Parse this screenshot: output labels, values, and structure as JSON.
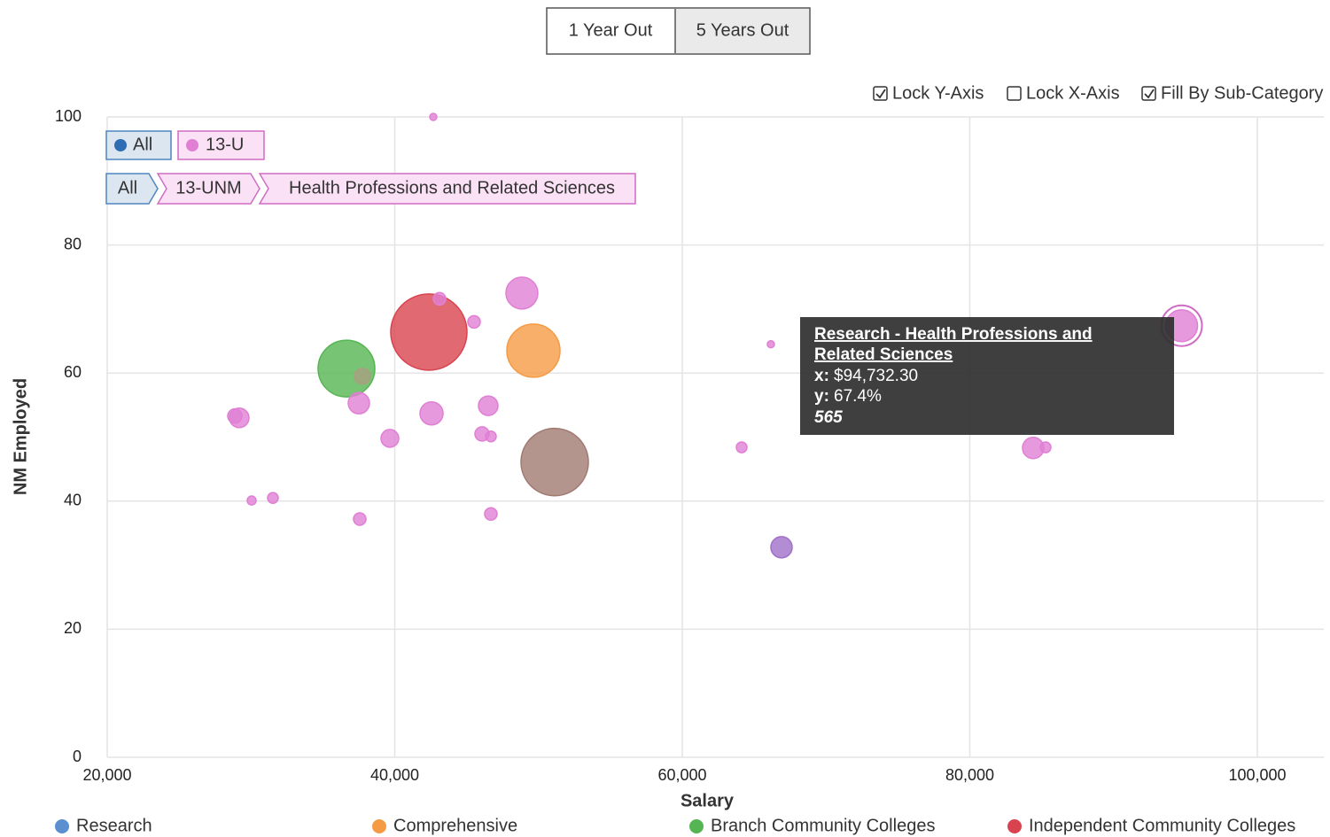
{
  "toggle": {
    "options": [
      "1 Year Out",
      "5 Years Out"
    ]
  },
  "checkboxes": [
    {
      "label": "Lock Y-Axis",
      "checked": true
    },
    {
      "label": "Lock X-Axis",
      "checked": false
    },
    {
      "label": "Fill By Sub-Category",
      "checked": true
    }
  ],
  "filters": [
    "All",
    "13-U"
  ],
  "breadcrumbs": [
    "All",
    "13-UNM",
    "Health Professions and Related Sciences"
  ],
  "tooltip": {
    "title_lines": [
      "Research - Health Professions and",
      "Related Sciences"
    ],
    "x_label": "x:",
    "x_value": "$94,732.30",
    "y_label": "y:",
    "y_value": "67.4%",
    "size_value": "565"
  },
  "chart_data": {
    "type": "bubble",
    "x_label": "Salary",
    "y_label": "NM Employed",
    "xlim": [
      20000,
      104000
    ],
    "ylim": [
      0,
      100
    ],
    "xticks": [
      {
        "value": 20000,
        "label": "20,000"
      },
      {
        "value": 40000,
        "label": "40,000"
      },
      {
        "value": 60000,
        "label": "60,000"
      },
      {
        "value": 80000,
        "label": "80,000"
      },
      {
        "value": 100000,
        "label": "100,000"
      }
    ],
    "yticks": [
      0,
      20,
      40,
      60,
      80,
      100
    ],
    "grid": true,
    "points": [
      {
        "x": 42681,
        "y": 100,
        "size": 28,
        "color": "#e07fd4"
      },
      {
        "x": 42373,
        "y": 66.4,
        "size": 3227,
        "color": "#d9434f"
      },
      {
        "x": 43113,
        "y": 71.6,
        "size": 86,
        "color": "#e07fd4"
      },
      {
        "x": 45516,
        "y": 68.0,
        "size": 86,
        "color": "#e07fd4"
      },
      {
        "x": 48844,
        "y": 72.5,
        "size": 565,
        "color": "#e07fd4"
      },
      {
        "x": 49646,
        "y": 63.5,
        "size": 1570,
        "color": "#f59b45"
      },
      {
        "x": 36641,
        "y": 60.7,
        "size": 1787,
        "color": "#55b552"
      },
      {
        "x": 37750,
        "y": 59.5,
        "size": 141,
        "color": "#a7a080"
      },
      {
        "x": 37504,
        "y": 55.3,
        "size": 251,
        "color": "#e07fd4"
      },
      {
        "x": 28875,
        "y": 53.3,
        "size": 112,
        "color": "#e07fd4"
      },
      {
        "x": 29183,
        "y": 53.0,
        "size": 211,
        "color": "#e07fd4"
      },
      {
        "x": 42558,
        "y": 53.7,
        "size": 295,
        "color": "#e07fd4"
      },
      {
        "x": 46502,
        "y": 54.9,
        "size": 211,
        "color": "#e07fd4"
      },
      {
        "x": 39661,
        "y": 49.8,
        "size": 175,
        "color": "#e07fd4"
      },
      {
        "x": 46071,
        "y": 50.5,
        "size": 112,
        "color": "#e07fd4"
      },
      {
        "x": 46687,
        "y": 50.1,
        "size": 63,
        "color": "#e07fd4"
      },
      {
        "x": 51125,
        "y": 46.1,
        "size": 2520,
        "color": "#a07a72"
      },
      {
        "x": 30046,
        "y": 40.1,
        "size": 44,
        "color": "#e07fd4"
      },
      {
        "x": 31525,
        "y": 40.5,
        "size": 63,
        "color": "#e07fd4"
      },
      {
        "x": 37565,
        "y": 37.2,
        "size": 86,
        "color": "#e07fd4"
      },
      {
        "x": 46687,
        "y": 38.0,
        "size": 86,
        "color": "#e07fd4"
      },
      {
        "x": 66163,
        "y": 64.5,
        "size": 28,
        "color": "#e07fd4"
      },
      {
        "x": 64129,
        "y": 48.4,
        "size": 63,
        "color": "#e07fd4"
      },
      {
        "x": 66903,
        "y": 32.8,
        "size": 251,
        "color": "#a070c8"
      },
      {
        "x": 84407,
        "y": 48.3,
        "size": 251,
        "color": "#e07fd4"
      },
      {
        "x": 85270,
        "y": 48.4,
        "size": 63,
        "color": "#e07fd4"
      },
      {
        "x": 94732.3,
        "y": 67.4,
        "size": 565,
        "color": "#e07fd4"
      }
    ],
    "legend": [
      {
        "name": "Research",
        "color": "#5b8fd0"
      },
      {
        "name": "Comprehensive",
        "color": "#f59b45"
      },
      {
        "name": "Branch Community Colleges",
        "color": "#55b552"
      },
      {
        "name": "Independent Community Colleges",
        "color": "#d9434f"
      }
    ]
  }
}
